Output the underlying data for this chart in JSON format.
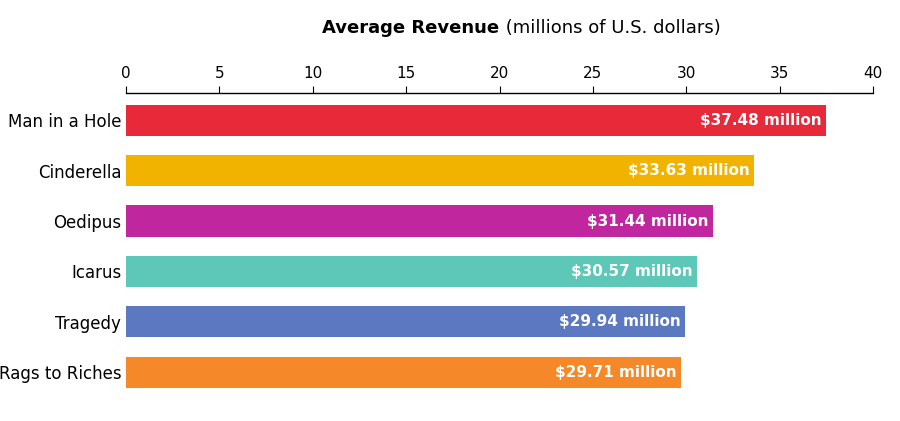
{
  "categories": [
    "Man in a Hole",
    "Cinderella",
    "Oedipus",
    "Icarus",
    "Tragedy",
    "Rags to Riches"
  ],
  "values": [
    37.48,
    33.63,
    31.44,
    30.57,
    29.94,
    29.71
  ],
  "labels": [
    "$37.48 million",
    "$33.63 million",
    "$31.44 million",
    "$30.57 million",
    "$29.94 million",
    "$29.71 million"
  ],
  "colors": [
    "#E8293A",
    "#F2B300",
    "#C0269E",
    "#5DC8B8",
    "#5B78C0",
    "#F5892A"
  ],
  "xlim": [
    0,
    40
  ],
  "xticks": [
    0,
    5,
    10,
    15,
    20,
    25,
    30,
    35,
    40
  ],
  "title_bold": "Average Revenue",
  "title_normal": " (millions of U.S. dollars)",
  "background_color": "#ffffff",
  "bar_height": 0.62,
  "label_fontsize": 11,
  "tick_fontsize": 11,
  "cat_fontsize": 12
}
